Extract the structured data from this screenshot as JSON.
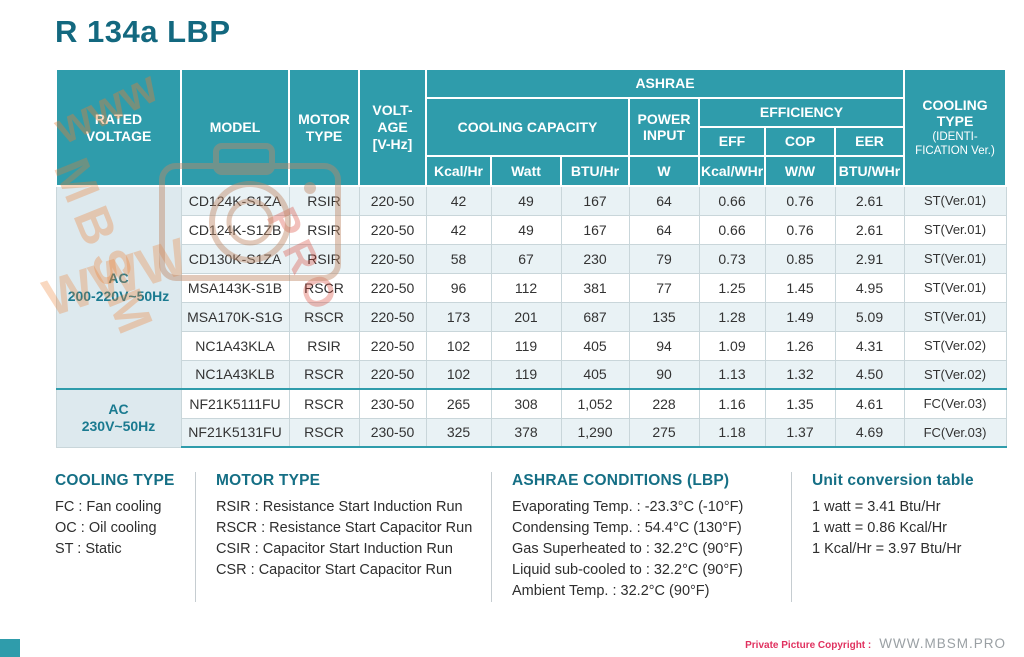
{
  "page": {
    "title": "R 134a LBP",
    "copyright_label": "Private Picture Copyright :",
    "copyright_site": "WWW.MBSM.PRO"
  },
  "watermark": {
    "text1": "www",
    "text2": "MBSM",
    "text3": "PRO",
    "text4": "WWW"
  },
  "colors": {
    "teal_header": "#2f9cab",
    "title_teal": "#13687f",
    "group_cell_bg": "#dde9ee",
    "row_alt": "#e9f2f5",
    "copyright_red": "#e0315f",
    "watermark_orange": "#eb7d30"
  },
  "table": {
    "headers": {
      "rated_line1": "RATED",
      "rated_line2": "VOLTAGE",
      "model": "MODEL",
      "motor_type": "MOTOR TYPE",
      "voltage_line1": "VOLT-",
      "voltage_line2": "AGE",
      "voltage_line3": "[V-Hz]",
      "ashrae": "ASHRAE",
      "cooling_capacity": "COOLING CAPACITY",
      "power_input": "POWER INPUT",
      "efficiency": "EFFICIENCY",
      "eff": "EFF",
      "cop": "COP",
      "eer": "EER",
      "unit_kcal": "Kcal/Hr",
      "unit_watt": "Watt",
      "unit_btu": "BTU/Hr",
      "unit_w": "W",
      "unit_kcal_whr": "Kcal/WHr",
      "unit_ww": "W/W",
      "unit_btu_whr": "BTU/WHr",
      "cooling_type": "COOLING TYPE",
      "cooling_type_sub": "(IDENTI-FICATION Ver.)"
    },
    "row_keys": [
      "model",
      "motor_type",
      "voltage",
      "kcal_hr",
      "watt",
      "btu_hr",
      "power_w",
      "eff",
      "cop",
      "eer",
      "cooling_type"
    ],
    "groups": [
      {
        "label_line1": "AC",
        "label_line2": "200-220V~50Hz",
        "rows": [
          {
            "model": "CD124K-S1ZA",
            "motor_type": "RSIR",
            "voltage": "220-50",
            "kcal_hr": "42",
            "watt": "49",
            "btu_hr": "167",
            "power_w": "64",
            "eff": "0.66",
            "cop": "0.76",
            "eer": "2.61",
            "cooling_type": "ST(Ver.01)"
          },
          {
            "model": "CD124K-S1ZB",
            "motor_type": "RSIR",
            "voltage": "220-50",
            "kcal_hr": "42",
            "watt": "49",
            "btu_hr": "167",
            "power_w": "64",
            "eff": "0.66",
            "cop": "0.76",
            "eer": "2.61",
            "cooling_type": "ST(Ver.01)"
          },
          {
            "model": "CD130K-S1ZA",
            "motor_type": "RSIR",
            "voltage": "220-50",
            "kcal_hr": "58",
            "watt": "67",
            "btu_hr": "230",
            "power_w": "79",
            "eff": "0.73",
            "cop": "0.85",
            "eer": "2.91",
            "cooling_type": "ST(Ver.01)"
          },
          {
            "model": "MSA143K-S1B",
            "motor_type": "RSCR",
            "voltage": "220-50",
            "kcal_hr": "96",
            "watt": "112",
            "btu_hr": "381",
            "power_w": "77",
            "eff": "1.25",
            "cop": "1.45",
            "eer": "4.95",
            "cooling_type": "ST(Ver.01)"
          },
          {
            "model": "MSA170K-S1G",
            "motor_type": "RSCR",
            "voltage": "220-50",
            "kcal_hr": "173",
            "watt": "201",
            "btu_hr": "687",
            "power_w": "135",
            "eff": "1.28",
            "cop": "1.49",
            "eer": "5.09",
            "cooling_type": "ST(Ver.01)"
          },
          {
            "model": "NC1A43KLA",
            "motor_type": "RSIR",
            "voltage": "220-50",
            "kcal_hr": "102",
            "watt": "119",
            "btu_hr": "405",
            "power_w": "94",
            "eff": "1.09",
            "cop": "1.26",
            "eer": "4.31",
            "cooling_type": "ST(Ver.02)"
          },
          {
            "model": "NC1A43KLB",
            "motor_type": "RSCR",
            "voltage": "220-50",
            "kcal_hr": "102",
            "watt": "119",
            "btu_hr": "405",
            "power_w": "90",
            "eff": "1.13",
            "cop": "1.32",
            "eer": "4.50",
            "cooling_type": "ST(Ver.02)"
          }
        ]
      },
      {
        "label_line1": "AC",
        "label_line2": "230V~50Hz",
        "rows": [
          {
            "model": "NF21K5111FU",
            "motor_type": "RSCR",
            "voltage": "230-50",
            "kcal_hr": "265",
            "watt": "308",
            "btu_hr": "1,052",
            "power_w": "228",
            "eff": "1.16",
            "cop": "1.35",
            "eer": "4.61",
            "cooling_type": "FC(Ver.03)"
          },
          {
            "model": "NF21K5131FU",
            "motor_type": "RSCR",
            "voltage": "230-50",
            "kcal_hr": "325",
            "watt": "378",
            "btu_hr": "1,290",
            "power_w": "275",
            "eff": "1.18",
            "cop": "1.37",
            "eer": "4.69",
            "cooling_type": "FC(Ver.03)"
          }
        ]
      }
    ]
  },
  "legend": {
    "cooling_type": {
      "title": "COOLING TYPE",
      "items": [
        "FC : Fan cooling",
        "OC : Oil cooling",
        "ST : Static"
      ]
    },
    "motor_type": {
      "title": "MOTOR TYPE",
      "items": [
        "RSIR : Resistance Start Induction Run",
        "RSCR : Resistance Start Capacitor Run",
        "CSIR : Capacitor Start Induction Run",
        "CSR : Capacitor Start Capacitor Run"
      ]
    },
    "ashrae_conditions": {
      "title": "ASHRAE CONDITIONS (LBP)",
      "items": [
        "Evaporating Temp. : -23.3°C (-10°F)",
        "Condensing Temp. : 54.4°C (130°F)",
        "Gas Superheated to : 32.2°C (90°F)",
        "Liquid sub-cooled to : 32.2°C (90°F)",
        "Ambient Temp. : 32.2°C (90°F)"
      ]
    },
    "unit_conversion": {
      "title": "Unit conversion table",
      "items": [
        "1 watt = 3.41 Btu/Hr",
        "1 watt = 0.86 Kcal/Hr",
        "1 Kcal/Hr = 3.97 Btu/Hr"
      ]
    }
  }
}
